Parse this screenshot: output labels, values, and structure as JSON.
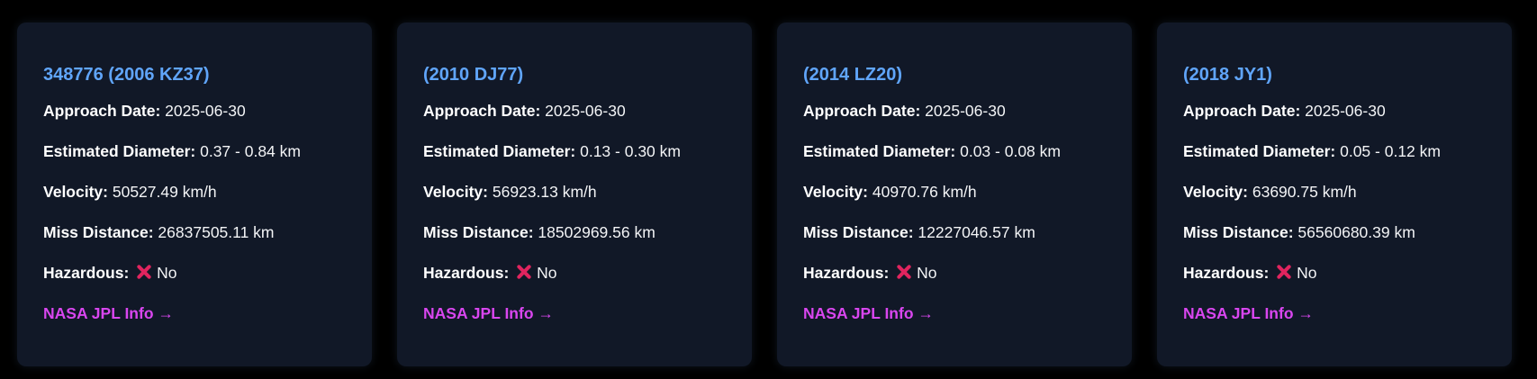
{
  "labels": {
    "approach_date": "Approach Date:",
    "diameter": "Estimated Diameter:",
    "velocity": "Velocity:",
    "miss_distance": "Miss Distance:",
    "hazardous": "Hazardous:"
  },
  "hazard_icon": "cross-mark-icon",
  "asteroids": [
    {
      "name": "348776 (2006 KZ37)",
      "approach_date": "2025-06-30",
      "diameter": "0.37 - 0.84 km",
      "velocity": "50527.49 km/h",
      "miss_distance": "26837505.11 km",
      "hazardous": "No",
      "link": "NASA JPL Info →"
    },
    {
      "name": "(2010 DJ77)",
      "approach_date": "2025-06-30",
      "diameter": "0.13 - 0.30 km",
      "velocity": "56923.13 km/h",
      "miss_distance": "18502969.56 km",
      "hazardous": "No",
      "link": "NASA JPL Info →"
    },
    {
      "name": "(2014 LZ20)",
      "approach_date": "2025-06-30",
      "diameter": "0.03 - 0.08 km",
      "velocity": "40970.76 km/h",
      "miss_distance": "12227046.57 km",
      "hazardous": "No",
      "link": "NASA JPL Info →"
    },
    {
      "name": "(2018 JY1)",
      "approach_date": "2025-06-30",
      "diameter": "0.05 - 0.12 km",
      "velocity": "63690.75 km/h",
      "miss_distance": "56560680.39 km",
      "hazardous": "No",
      "link": "NASA JPL Info →"
    }
  ],
  "colors": {
    "page_bg": "#000000",
    "card_bg": "#111827",
    "title": "#60a5fa",
    "link": "#d946ef",
    "hazard_cross": "#e0245e"
  }
}
